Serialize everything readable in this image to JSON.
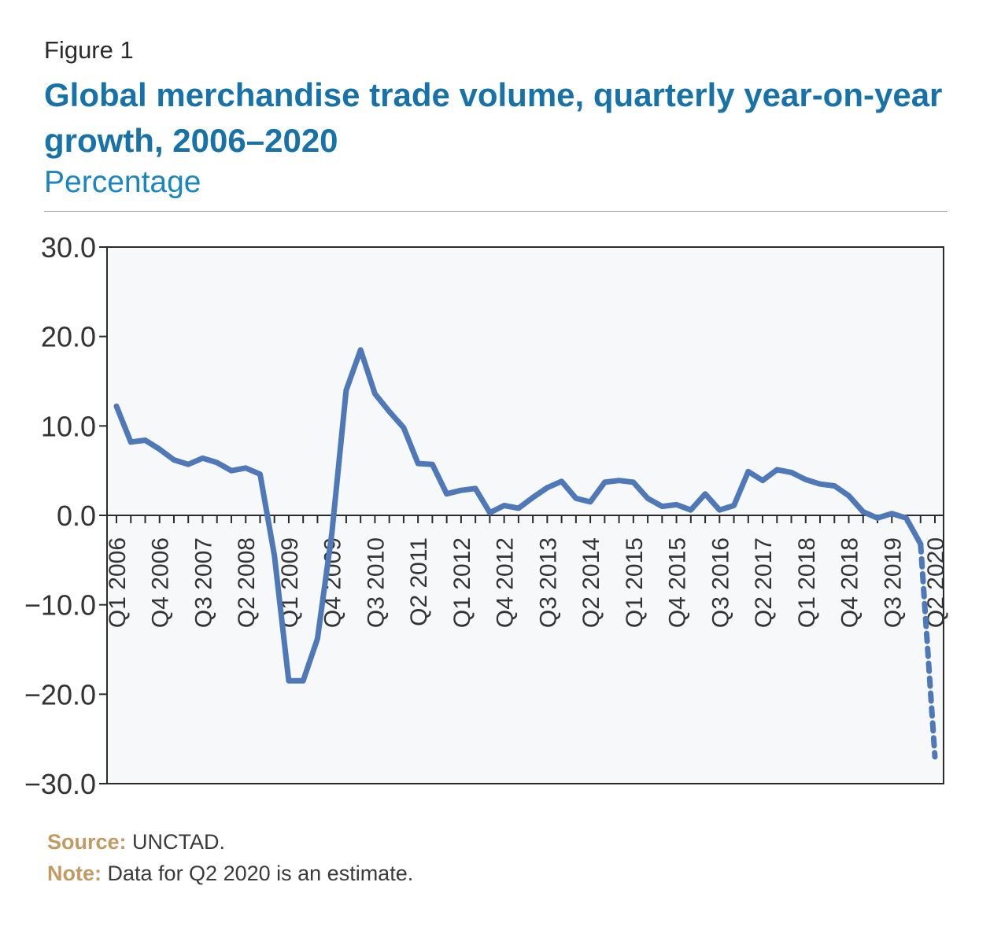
{
  "figure_label": "Figure 1",
  "title": "Global merchandise trade volume, quarterly year-on-year growth, 2006–2020",
  "subtitle": "Percentage",
  "source_label": "Source:",
  "source_text": "UNCTAD.",
  "note_label": "Note:",
  "note_text": "Data for Q2 2020 is an estimate.",
  "colors": {
    "line": "#4e78b8",
    "title": "#1672a8",
    "subtitle": "#1a86c0",
    "note_key": "#c39a62",
    "plot_bg": "#f7f8fa"
  },
  "chart_data": {
    "type": "line",
    "title": "Global merchandise trade volume, quarterly year-on-year growth, 2006–2020",
    "subtitle": "Percentage",
    "ylim": [
      -30,
      30
    ],
    "yticks": [
      30,
      20,
      10,
      0,
      -10,
      -20,
      -30
    ],
    "ytick_labels": [
      "30.0",
      "20.0",
      "10.0",
      "0.0",
      "−10.0",
      "−20.0",
      "−30.0"
    ],
    "grid": false,
    "x": [
      "Q1 2006",
      "Q2 2006",
      "Q3 2006",
      "Q4 2006",
      "Q1 2007",
      "Q2 2007",
      "Q3 2007",
      "Q4 2007",
      "Q1 2008",
      "Q2 2008",
      "Q3 2008",
      "Q4 2008",
      "Q1 2009",
      "Q2 2009",
      "Q3 2009",
      "Q4 2009",
      "Q1 2010",
      "Q2 2010",
      "Q3 2010",
      "Q4 2010",
      "Q1 2011",
      "Q2 2011",
      "Q3 2011",
      "Q4 2011",
      "Q1 2012",
      "Q2 2012",
      "Q3 2012",
      "Q4 2012",
      "Q1 2013",
      "Q2 2013",
      "Q3 2013",
      "Q4 2013",
      "Q1 2014",
      "Q2 2014",
      "Q3 2014",
      "Q4 2014",
      "Q1 2015",
      "Q2 2015",
      "Q3 2015",
      "Q4 2015",
      "Q1 2016",
      "Q2 2016",
      "Q3 2016",
      "Q4 2016",
      "Q1 2017",
      "Q2 2017",
      "Q3 2017",
      "Q4 2017",
      "Q1 2018",
      "Q2 2018",
      "Q3 2018",
      "Q4 2018",
      "Q1 2019",
      "Q2 2019",
      "Q3 2019",
      "Q4 2019",
      "Q1 2020",
      "Q2 2020"
    ],
    "tick_labels": [
      {
        "i": 0,
        "label": "Q1 2006"
      },
      {
        "i": 3,
        "label": "Q4 2006"
      },
      {
        "i": 6,
        "label": "Q3 2007"
      },
      {
        "i": 9,
        "label": "Q2 2008"
      },
      {
        "i": 12,
        "label": "Q1 2009"
      },
      {
        "i": 15,
        "label": "Q4 2009"
      },
      {
        "i": 18,
        "label": "Q3 2010"
      },
      {
        "i": 21,
        "label": "Q2 2011"
      },
      {
        "i": 24,
        "label": "Q1 2012"
      },
      {
        "i": 27,
        "label": "Q4 2012"
      },
      {
        "i": 30,
        "label": "Q3 2013"
      },
      {
        "i": 33,
        "label": "Q2 2014"
      },
      {
        "i": 36,
        "label": "Q1 2015"
      },
      {
        "i": 39,
        "label": "Q4 2015"
      },
      {
        "i": 42,
        "label": "Q3 2016"
      },
      {
        "i": 45,
        "label": "Q2 2017"
      },
      {
        "i": 48,
        "label": "Q1 2018"
      },
      {
        "i": 51,
        "label": "Q4 2018"
      },
      {
        "i": 54,
        "label": "Q3 2019"
      },
      {
        "i": 57,
        "label": "Q2 2020"
      }
    ],
    "series": [
      {
        "values": [
          12.2,
          8.2,
          8.4,
          7.4,
          6.2,
          5.7,
          6.4,
          5.9,
          5.0,
          5.3,
          4.6,
          -4.5,
          -18.5,
          -18.5,
          -13.8,
          -2.0,
          14.0,
          18.5,
          13.6,
          11.6,
          9.8,
          5.8,
          5.7,
          2.4,
          2.8,
          3.0,
          0.3,
          1.1,
          0.8,
          2.0,
          3.1,
          3.8,
          1.9,
          1.5,
          3.7,
          3.9,
          3.7,
          1.9,
          1.0,
          1.2,
          0.6,
          2.4,
          0.6,
          1.1,
          4.9,
          3.9,
          5.1,
          4.8,
          4.0,
          3.5,
          3.3,
          2.2,
          0.4,
          -0.3,
          0.2,
          -0.3,
          -3.2,
          -27.0
        ],
        "estimate_from_index": 56
      }
    ]
  }
}
